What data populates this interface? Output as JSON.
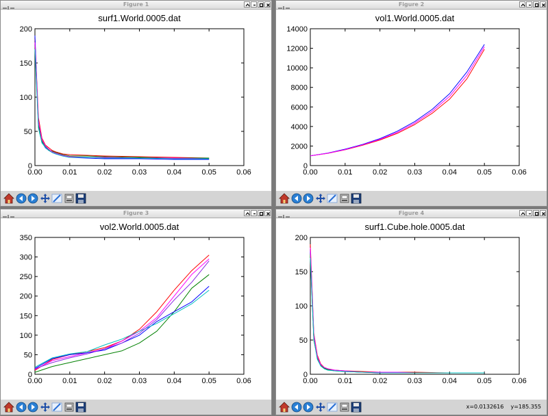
{
  "windows": [
    {
      "title": "Figure 1",
      "status": "",
      "chart_data": {
        "type": "line",
        "title": "surf1.World.0005.dat",
        "xlabel": "",
        "ylabel": "",
        "xlim": [
          0,
          0.06
        ],
        "ylim": [
          0,
          200
        ],
        "xticks": [
          "0.00",
          "0.01",
          "0.02",
          "0.03",
          "0.04",
          "0.05",
          "0.06"
        ],
        "yticks": [
          "0",
          "50",
          "100",
          "150",
          "200"
        ],
        "grid": false,
        "series": [
          {
            "color": "#ff0000",
            "x": [
              0,
              0.001,
              0.002,
              0.003,
              0.004,
              0.005,
              0.006,
              0.008,
              0.01,
              0.015,
              0.02,
              0.03,
              0.04,
              0.05
            ],
            "y": [
              185,
              70,
              40,
              30,
              26,
              22,
              20,
              17,
              16,
              15,
              14,
              13,
              12,
              11
            ]
          },
          {
            "color": "#0000ff",
            "x": [
              0,
              0.001,
              0.002,
              0.003,
              0.004,
              0.005,
              0.006,
              0.008,
              0.01,
              0.015,
              0.02,
              0.03,
              0.04,
              0.05
            ],
            "y": [
              190,
              58,
              34,
              26,
              22,
              19,
              17,
              14,
              12,
              11,
              10,
              10,
              9,
              9
            ]
          },
          {
            "color": "#008000",
            "x": [
              0,
              0.001,
              0.002,
              0.003,
              0.004,
              0.005,
              0.006,
              0.008,
              0.01,
              0.015,
              0.02,
              0.03,
              0.04,
              0.05
            ],
            "y": [
              175,
              60,
              36,
              28,
              23,
              21,
              19,
              16,
              14,
              14,
              13,
              12,
              11,
              11
            ]
          },
          {
            "color": "#ff00ff",
            "x": [
              0,
              0.001,
              0.002,
              0.003,
              0.004,
              0.005,
              0.006,
              0.008,
              0.01,
              0.015,
              0.02,
              0.03,
              0.04,
              0.05
            ],
            "y": [
              180,
              65,
              38,
              29,
              24,
              20,
              18,
              15,
              13,
              12,
              12,
              11,
              11,
              10
            ]
          },
          {
            "color": "#00bfbf",
            "x": [
              0,
              0.001,
              0.002,
              0.003,
              0.004,
              0.005,
              0.006,
              0.008,
              0.01,
              0.015,
              0.02,
              0.03,
              0.04,
              0.05
            ],
            "y": [
              170,
              55,
              33,
              27,
              22,
              19,
              17,
              14,
              12,
              12,
              11,
              11,
              10,
              10
            ]
          }
        ]
      }
    },
    {
      "title": "Figure 2",
      "status": "",
      "chart_data": {
        "type": "line",
        "title": "vol1.World.0005.dat",
        "xlabel": "",
        "ylabel": "",
        "xlim": [
          0,
          0.06
        ],
        "ylim": [
          0,
          14000
        ],
        "xticks": [
          "0.00",
          "0.01",
          "0.02",
          "0.03",
          "0.04",
          "0.05",
          "0.06"
        ],
        "yticks": [
          "0",
          "2000",
          "4000",
          "6000",
          "8000",
          "10000",
          "12000",
          "14000"
        ],
        "grid": false,
        "series": [
          {
            "color": "#ff0000",
            "x": [
              0,
              0.005,
              0.01,
              0.015,
              0.02,
              0.025,
              0.03,
              0.035,
              0.04,
              0.045,
              0.05
            ],
            "y": [
              1000,
              1250,
              1620,
              2080,
              2620,
              3300,
              4200,
              5350,
              6800,
              8900,
              11900
            ]
          },
          {
            "color": "#0000ff",
            "x": [
              0,
              0.005,
              0.01,
              0.015,
              0.02,
              0.025,
              0.03,
              0.035,
              0.04,
              0.045,
              0.05
            ],
            "y": [
              1000,
              1280,
              1680,
              2160,
              2760,
              3520,
              4500,
              5750,
              7350,
              9600,
              12400
            ]
          },
          {
            "color": "#ff00ff",
            "x": [
              0,
              0.005,
              0.01,
              0.015,
              0.02,
              0.025,
              0.03,
              0.035,
              0.04,
              0.045,
              0.05
            ],
            "y": [
              1000,
              1260,
              1640,
              2120,
              2690,
              3400,
              4350,
              5550,
              7080,
              9250,
              12150
            ]
          }
        ]
      }
    },
    {
      "title": "Figure 3",
      "status": "",
      "chart_data": {
        "type": "line",
        "title": "vol2.World.0005.dat",
        "xlabel": "",
        "ylabel": "",
        "xlim": [
          0,
          0.06
        ],
        "ylim": [
          0,
          350
        ],
        "xticks": [
          "0.00",
          "0.01",
          "0.02",
          "0.03",
          "0.04",
          "0.05",
          "0.06"
        ],
        "yticks": [
          "0",
          "50",
          "100",
          "150",
          "200",
          "250",
          "300",
          "350"
        ],
        "grid": false,
        "series": [
          {
            "color": "#ff0000",
            "x": [
              0,
              0.005,
              0.01,
              0.015,
              0.02,
              0.025,
              0.03,
              0.035,
              0.04,
              0.045,
              0.05
            ],
            "y": [
              10,
              38,
              50,
              58,
              68,
              85,
              115,
              160,
              215,
              265,
              305
            ]
          },
          {
            "color": "#ff00ff",
            "x": [
              0,
              0.005,
              0.01,
              0.015,
              0.02,
              0.025,
              0.03,
              0.035,
              0.04,
              0.045,
              0.05
            ],
            "y": [
              12,
              35,
              45,
              55,
              65,
              85,
              110,
              145,
              200,
              255,
              295
            ]
          },
          {
            "color": "#008000",
            "x": [
              0,
              0.005,
              0.01,
              0.015,
              0.02,
              0.025,
              0.03,
              0.035,
              0.04,
              0.045,
              0.05
            ],
            "y": [
              5,
              20,
              30,
              40,
              50,
              60,
              80,
              110,
              160,
              220,
              255
            ]
          },
          {
            "color": "#0000ff",
            "x": [
              0,
              0.005,
              0.01,
              0.015,
              0.02,
              0.025,
              0.03,
              0.035,
              0.04,
              0.045,
              0.05
            ],
            "y": [
              15,
              40,
              50,
              55,
              62,
              80,
              100,
              135,
              160,
              185,
              225
            ]
          },
          {
            "color": "#00bfbf",
            "x": [
              0,
              0.005,
              0.01,
              0.015,
              0.02,
              0.025,
              0.03,
              0.035,
              0.04,
              0.045,
              0.05
            ],
            "y": [
              18,
              42,
              52,
              58,
              75,
              90,
              110,
              130,
              155,
              180,
              215
            ]
          },
          {
            "color": "#8a2be2",
            "x": [
              0,
              0.005,
              0.01,
              0.015,
              0.02,
              0.025,
              0.03,
              0.035,
              0.04,
              0.045,
              0.05
            ],
            "y": [
              14,
              30,
              42,
              52,
              65,
              80,
              105,
              140,
              190,
              235,
              290
            ]
          }
        ]
      }
    },
    {
      "title": "Figure 4",
      "status": "x=0.0132616    y=185.355",
      "chart_data": {
        "type": "line",
        "title": "surf1.Cube.hole.0005.dat",
        "xlabel": "",
        "ylabel": "",
        "xlim": [
          0,
          0.06
        ],
        "ylim": [
          0,
          200
        ],
        "xticks": [
          "0.00",
          "0.01",
          "0.02",
          "0.03",
          "0.04",
          "0.05",
          "0.06"
        ],
        "yticks": [
          "0",
          "50",
          "100",
          "150",
          "200"
        ],
        "grid": false,
        "series": [
          {
            "color": "#ff0000",
            "x": [
              0,
              0.001,
              0.002,
              0.003,
              0.004,
              0.005,
              0.007,
              0.01,
              0.015,
              0.02,
              0.025,
              0.03,
              0.04,
              0.05
            ],
            "y": [
              190,
              60,
              28,
              15,
              10,
              8,
              6,
              5,
              4,
              3,
              3,
              3,
              2,
              2
            ]
          },
          {
            "color": "#0000ff",
            "x": [
              0,
              0.001,
              0.002,
              0.003,
              0.004,
              0.005,
              0.007,
              0.01,
              0.015,
              0.02,
              0.025,
              0.03,
              0.04,
              0.05
            ],
            "y": [
              180,
              55,
              25,
              14,
              9,
              7,
              6,
              4,
              3,
              2,
              2,
              2,
              2,
              2
            ]
          },
          {
            "color": "#008000",
            "x": [
              0,
              0.001,
              0.002,
              0.003,
              0.004,
              0.005,
              0.007,
              0.01,
              0.015,
              0.02,
              0.025,
              0.03,
              0.04,
              0.05
            ],
            "y": [
              175,
              50,
              24,
              13,
              9,
              7,
              5,
              4,
              3,
              3,
              2,
              2,
              2,
              2
            ]
          },
          {
            "color": "#ff00ff",
            "x": [
              0,
              0.001,
              0.002,
              0.003,
              0.004,
              0.005,
              0.007,
              0.01,
              0.015,
              0.02,
              0.025,
              0.03,
              0.04,
              0.05
            ],
            "y": [
              185,
              58,
              26,
              14,
              10,
              8,
              6,
              5,
              3,
              3,
              3,
              2,
              2,
              2
            ]
          },
          {
            "color": "#00bfbf",
            "x": [
              0,
              0.001,
              0.002,
              0.003,
              0.004,
              0.005,
              0.007,
              0.01,
              0.015,
              0.02,
              0.025,
              0.03,
              0.04,
              0.05
            ],
            "y": [
              170,
              52,
              22,
              12,
              8,
              6,
              5,
              4,
              3,
              2,
              2,
              2,
              2,
              2
            ]
          }
        ]
      }
    }
  ],
  "toolbar_icons": [
    "home-icon",
    "back-icon",
    "forward-icon",
    "pan-icon",
    "zoom-icon",
    "configure-subplots-icon",
    "save-icon"
  ],
  "colors": {
    "window_bg": "#d4d4d4",
    "plot_bg": "#ffffff",
    "desktop": "#7a7a7a"
  }
}
